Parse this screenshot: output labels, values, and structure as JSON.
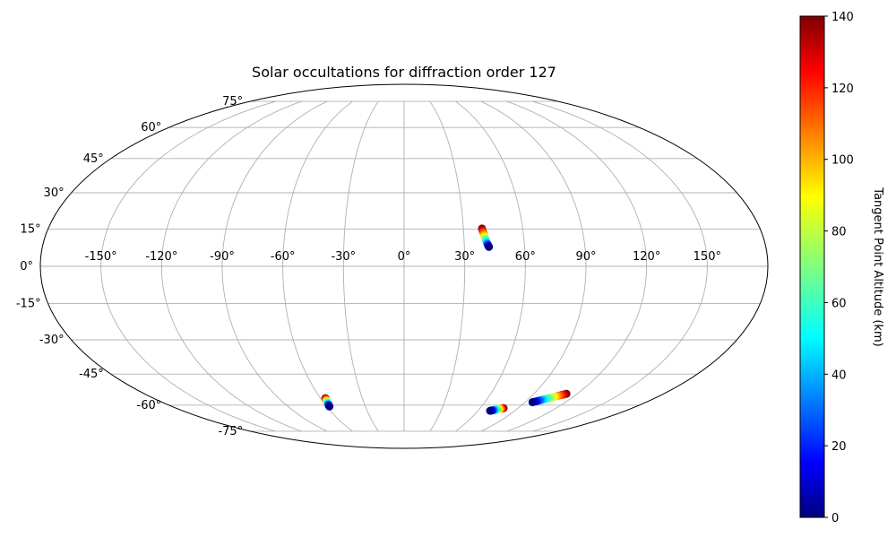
{
  "chart_data": {
    "type": "scatter",
    "title": "Solar occultations for diffraction order 127",
    "projection": "mollweide",
    "xlabel": "",
    "ylabel": "",
    "longitude_ticks": [
      "-150°",
      "-120°",
      "-90°",
      "-60°",
      "-30°",
      "0°",
      "30°",
      "60°",
      "90°",
      "120°",
      "150°"
    ],
    "latitude_ticks": [
      "75°",
      "60°",
      "45°",
      "30°",
      "15°",
      "0°",
      "-15°",
      "-30°",
      "-45°",
      "-60°",
      "-75°"
    ],
    "grid": true,
    "colormap": "jet",
    "colorbar": {
      "label": "Tangent Point Altitude (km)",
      "range": [
        0,
        140
      ],
      "ticks": [
        "0",
        "20",
        "40",
        "60",
        "80",
        "100",
        "120",
        "140"
      ]
    },
    "series": [
      {
        "points": [
          {
            "lon": 39.4,
            "lat": 15.2,
            "alt": 140
          },
          {
            "lon": 39.6,
            "lat": 14.5,
            "alt": 130
          },
          {
            "lon": 39.8,
            "lat": 13.9,
            "alt": 120
          },
          {
            "lon": 40.0,
            "lat": 13.3,
            "alt": 110
          },
          {
            "lon": 40.2,
            "lat": 12.6,
            "alt": 100
          },
          {
            "lon": 40.4,
            "lat": 12.0,
            "alt": 90
          },
          {
            "lon": 40.6,
            "lat": 11.4,
            "alt": 80
          },
          {
            "lon": 40.8,
            "lat": 10.8,
            "alt": 70
          },
          {
            "lon": 41.0,
            "lat": 10.3,
            "alt": 60
          },
          {
            "lon": 41.2,
            "lat": 9.8,
            "alt": 50
          },
          {
            "lon": 41.4,
            "lat": 9.3,
            "alt": 40
          },
          {
            "lon": 41.6,
            "lat": 8.9,
            "alt": 30
          },
          {
            "lon": 41.8,
            "lat": 8.5,
            "alt": 20
          },
          {
            "lon": 42.0,
            "lat": 8.1,
            "alt": 10
          },
          {
            "lon": 42.2,
            "lat": 7.8,
            "alt": 0
          }
        ]
      },
      {
        "points": [
          {
            "lon": -56.5,
            "lat": -56.5,
            "alt": 140
          },
          {
            "lon": -56.6,
            "lat": -56.8,
            "alt": 130
          },
          {
            "lon": -56.7,
            "lat": -57.1,
            "alt": 120
          },
          {
            "lon": -56.8,
            "lat": -57.4,
            "alt": 110
          },
          {
            "lon": -56.9,
            "lat": -57.7,
            "alt": 100
          },
          {
            "lon": -57.0,
            "lat": -58.0,
            "alt": 90
          },
          {
            "lon": -57.1,
            "lat": -58.3,
            "alt": 80
          },
          {
            "lon": -57.2,
            "lat": -58.6,
            "alt": 70
          },
          {
            "lon": -57.3,
            "lat": -58.9,
            "alt": 60
          },
          {
            "lon": -57.4,
            "lat": -59.2,
            "alt": 50
          },
          {
            "lon": -57.5,
            "lat": -59.5,
            "alt": 40
          },
          {
            "lon": -57.6,
            "lat": -59.8,
            "alt": 30
          },
          {
            "lon": -57.7,
            "lat": -60.1,
            "alt": 20
          },
          {
            "lon": -57.8,
            "lat": -60.4,
            "alt": 10
          },
          {
            "lon": -57.9,
            "lat": -60.7,
            "alt": 0
          }
        ]
      },
      {
        "points": [
          {
            "lon": 78.5,
            "lat": -61.6,
            "alt": 140
          },
          {
            "lon": 77.9,
            "lat": -61.7,
            "alt": 130
          },
          {
            "lon": 77.3,
            "lat": -61.8,
            "alt": 120
          },
          {
            "lon": 76.7,
            "lat": -61.9,
            "alt": 110
          },
          {
            "lon": 76.1,
            "lat": -62.0,
            "alt": 100
          },
          {
            "lon": 75.5,
            "lat": -62.1,
            "alt": 90
          },
          {
            "lon": 74.9,
            "lat": -62.2,
            "alt": 80
          },
          {
            "lon": 74.3,
            "lat": -62.3,
            "alt": 70
          },
          {
            "lon": 73.7,
            "lat": -62.4,
            "alt": 60
          },
          {
            "lon": 73.1,
            "lat": -62.5,
            "alt": 50
          },
          {
            "lon": 72.5,
            "lat": -62.6,
            "alt": 40
          },
          {
            "lon": 71.9,
            "lat": -62.7,
            "alt": 30
          },
          {
            "lon": 71.3,
            "lat": -62.8,
            "alt": 20
          },
          {
            "lon": 70.7,
            "lat": -62.9,
            "alt": 10
          },
          {
            "lon": 70.0,
            "lat": -63.0,
            "alt": 0
          }
        ]
      },
      {
        "points": [
          {
            "lon": 112.5,
            "lat": -54.3,
            "alt": 140
          },
          {
            "lon": 111.3,
            "lat": -54.6,
            "alt": 130
          },
          {
            "lon": 110.1,
            "lat": -54.9,
            "alt": 120
          },
          {
            "lon": 108.9,
            "lat": -55.2,
            "alt": 110
          },
          {
            "lon": 107.7,
            "lat": -55.5,
            "alt": 100
          },
          {
            "lon": 106.5,
            "lat": -55.8,
            "alt": 90
          },
          {
            "lon": 105.3,
            "lat": -56.1,
            "alt": 80
          },
          {
            "lon": 104.1,
            "lat": -56.4,
            "alt": 70
          },
          {
            "lon": 102.9,
            "lat": -56.7,
            "alt": 60
          },
          {
            "lon": 101.7,
            "lat": -57.0,
            "alt": 50
          },
          {
            "lon": 100.5,
            "lat": -57.3,
            "alt": 40
          },
          {
            "lon": 99.3,
            "lat": -57.6,
            "alt": 30
          },
          {
            "lon": 98.1,
            "lat": -57.9,
            "alt": 20
          },
          {
            "lon": 96.9,
            "lat": -58.2,
            "alt": 10
          },
          {
            "lon": 95.5,
            "lat": -58.5,
            "alt": 0
          }
        ]
      }
    ]
  }
}
